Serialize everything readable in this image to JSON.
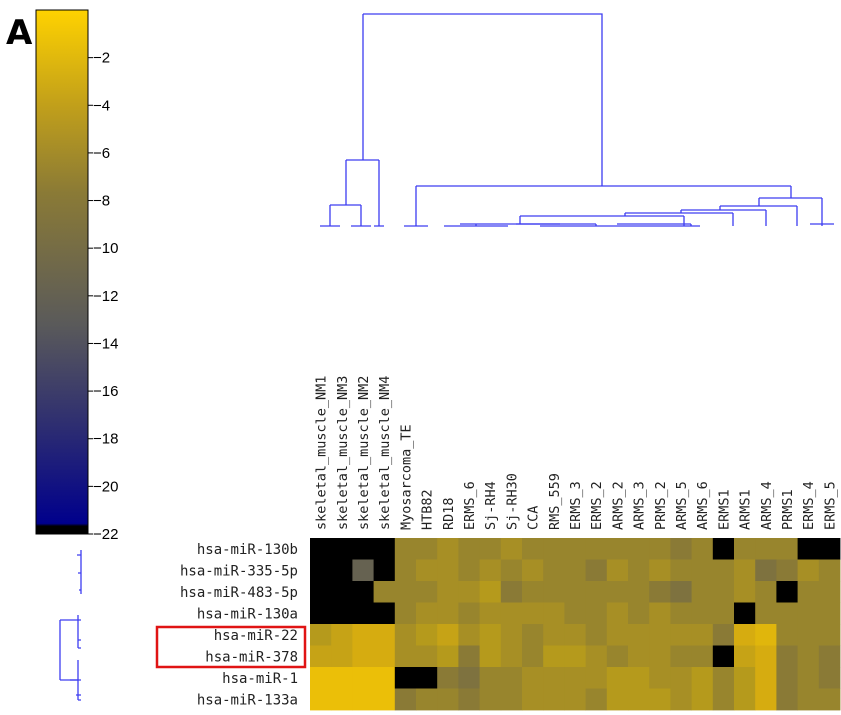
{
  "panel_label": "A",
  "chart_data": {
    "type": "heatmap",
    "title": "",
    "xlabel": "",
    "ylabel": "",
    "colorbar": {
      "range": [
        -22,
        0
      ],
      "ticks": [
        -2,
        -4,
        -6,
        -8,
        -10,
        -12,
        -14,
        -16,
        -18,
        -20,
        -22
      ],
      "tick_labels": [
        "−2",
        "−4",
        "−6",
        "−8",
        "−10",
        "−12",
        "−14",
        "−16",
        "−18",
        "−20",
        "−22"
      ],
      "colors": [
        "#000000",
        "#00008c",
        "#5a5a5a",
        "#b59a1c",
        "#ffd200"
      ],
      "placement": "left"
    },
    "columns": [
      "skeletal_muscle_NM1",
      "skeletal_muscle_NM3",
      "skeletal_muscle_NM2",
      "skeletal_muscle_NM4",
      "Myosarcoma_TE",
      "HTB82",
      "RD18",
      "ERMS_6",
      "Sj-RH4",
      "Sj-RH30",
      "CCA",
      "RMS_559",
      "ERMS_3",
      "ERMS_2",
      "ARMS_2",
      "ARMS_3",
      "PRMS_2",
      "ARMS_5",
      "ARMS_6",
      "ERMS1",
      "ARMS1",
      "ARMS_4",
      "PRMS1",
      "ERMS_4",
      "ERMS_5"
    ],
    "rows": [
      "hsa-miR-130b",
      "hsa-miR-335-5p",
      "hsa-miR-483-5p",
      "hsa-miR-130a",
      "hsa-miR-22",
      "hsa-miR-378",
      "hsa-miR-1",
      "hsa-miR-133a"
    ],
    "highlighted_rows": [
      "hsa-miR-22",
      "hsa-miR-378"
    ],
    "values": [
      [
        -22,
        -22,
        -22,
        -22,
        -8,
        -8,
        -7,
        -8,
        -8,
        -7,
        -8,
        -8,
        -8,
        -8,
        -8,
        -8,
        -8,
        -9,
        -8,
        -22,
        -8,
        -8,
        -8,
        -22,
        -22
      ],
      [
        -22,
        -22,
        -12,
        -22,
        -8,
        -7,
        -7,
        -8,
        -7,
        -8,
        -7,
        -8,
        -8,
        -9,
        -7,
        -8,
        -7,
        -8,
        -8,
        -8,
        -7,
        -10,
        -9,
        -7,
        -8
      ],
      [
        -22,
        -22,
        -22,
        -8,
        -8,
        -8,
        -7,
        -7,
        -6,
        -9,
        -8,
        -8,
        -8,
        -8,
        -8,
        -8,
        -9,
        -10,
        -8,
        -8,
        -7,
        -8,
        -22,
        -8,
        -8
      ],
      [
        -22,
        -22,
        -22,
        -22,
        -8,
        -7,
        -7,
        -8,
        -7,
        -7,
        -7,
        -7,
        -8,
        -8,
        -7,
        -8,
        -7,
        -8,
        -8,
        -8,
        -22,
        -8,
        -8,
        -8,
        -8
      ],
      [
        -6,
        -5,
        -4,
        -4,
        -7,
        -6,
        -5,
        -7,
        -6,
        -7,
        -8,
        -7,
        -7,
        -8,
        -7,
        -7,
        -7,
        -7,
        -7,
        -9,
        -4,
        -3,
        -8,
        -8,
        -8
      ],
      [
        -5,
        -5,
        -4,
        -4,
        -7,
        -7,
        -6,
        -9,
        -6,
        -7,
        -8,
        -6,
        -6,
        -7,
        -8,
        -7,
        -7,
        -8,
        -8,
        -22,
        -5,
        -4,
        -9,
        -8,
        -9
      ],
      [
        -2,
        -2,
        -2,
        -2,
        -22,
        -22,
        -9,
        -10,
        -8,
        -8,
        -7,
        -7,
        -7,
        -7,
        -6,
        -6,
        -7,
        -7,
        -6,
        -8,
        -6,
        -4,
        -9,
        -8,
        -9
      ],
      [
        -2,
        -2,
        -2,
        -2,
        -9,
        -8,
        -8,
        -9,
        -8,
        -8,
        -7,
        -7,
        -7,
        -8,
        -6,
        -6,
        -6,
        -7,
        -6,
        -8,
        -6,
        -4,
        -9,
        -8,
        -8
      ]
    ]
  }
}
